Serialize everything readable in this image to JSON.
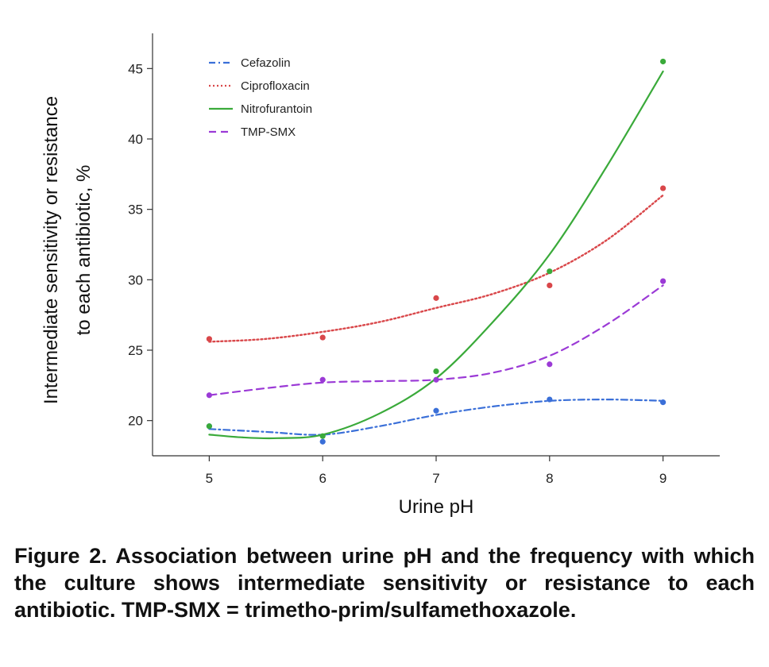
{
  "chart_data": {
    "type": "line",
    "title": "",
    "xlabel": "Urine pH",
    "ylabel_lines": [
      "Intermediate sensitivity or resistance",
      "to each antibiotic, %"
    ],
    "xlim": [
      4.5,
      9.5
    ],
    "ylim": [
      17.5,
      47.5
    ],
    "x_ticks": [
      5,
      6,
      7,
      8,
      9
    ],
    "y_ticks": [
      20,
      25,
      30,
      35,
      40,
      45
    ],
    "grid": false,
    "legend_position": "top-left",
    "series": [
      {
        "name": "Cefazolin",
        "color": "#3a6fd8",
        "line_style": "dash-dot",
        "points": [
          [
            5,
            19.6
          ],
          [
            6,
            18.5
          ],
          [
            7,
            20.7
          ],
          [
            8,
            21.5
          ],
          [
            9,
            21.3
          ]
        ],
        "fit": [
          [
            5,
            19.4
          ],
          [
            5.5,
            19.2
          ],
          [
            6,
            19.0
          ],
          [
            6.5,
            19.6
          ],
          [
            7,
            20.4
          ],
          [
            7.5,
            21.0
          ],
          [
            8,
            21.4
          ],
          [
            8.5,
            21.5
          ],
          [
            9,
            21.4
          ]
        ]
      },
      {
        "name": "Ciprofloxacin",
        "color": "#d9474a",
        "line_style": "dotted",
        "points": [
          [
            5,
            25.8
          ],
          [
            6,
            25.9
          ],
          [
            7,
            28.7
          ],
          [
            8,
            29.6
          ],
          [
            9,
            36.5
          ]
        ],
        "fit": [
          [
            5,
            25.6
          ],
          [
            5.5,
            25.8
          ],
          [
            6,
            26.3
          ],
          [
            6.5,
            27.0
          ],
          [
            7,
            28.0
          ],
          [
            7.5,
            29.0
          ],
          [
            8,
            30.5
          ],
          [
            8.5,
            32.8
          ],
          [
            9,
            36.0
          ]
        ]
      },
      {
        "name": "Nitrofurantoin",
        "color": "#3aaa3a",
        "line_style": "solid",
        "points": [
          [
            5,
            19.6
          ],
          [
            6,
            18.9
          ],
          [
            7,
            23.5
          ],
          [
            8,
            30.6
          ],
          [
            9,
            45.5
          ]
        ],
        "fit": [
          [
            5,
            19.0
          ],
          [
            5.3,
            18.8
          ],
          [
            5.6,
            18.75
          ],
          [
            6,
            19.0
          ],
          [
            6.5,
            20.5
          ],
          [
            7,
            23.0
          ],
          [
            7.5,
            27.0
          ],
          [
            8,
            31.8
          ],
          [
            8.5,
            38.0
          ],
          [
            9,
            44.8
          ]
        ]
      },
      {
        "name": "TMP-SMX",
        "color": "#9b3ad6",
        "line_style": "dashed",
        "points": [
          [
            5,
            21.8
          ],
          [
            6,
            22.9
          ],
          [
            7,
            22.9
          ],
          [
            8,
            24.0
          ],
          [
            9,
            29.9
          ]
        ],
        "fit": [
          [
            5,
            21.8
          ],
          [
            5.5,
            22.3
          ],
          [
            6,
            22.7
          ],
          [
            6.5,
            22.8
          ],
          [
            7,
            22.9
          ],
          [
            7.5,
            23.4
          ],
          [
            8,
            24.6
          ],
          [
            8.5,
            26.8
          ],
          [
            9,
            29.6
          ]
        ]
      }
    ]
  },
  "caption": "Figure 2. Association between urine pH and the frequency with which the culture shows intermediate sensitivity or resistance to each antibiotic. TMP-SMX = trimetho-prim/sulfamethoxazole."
}
